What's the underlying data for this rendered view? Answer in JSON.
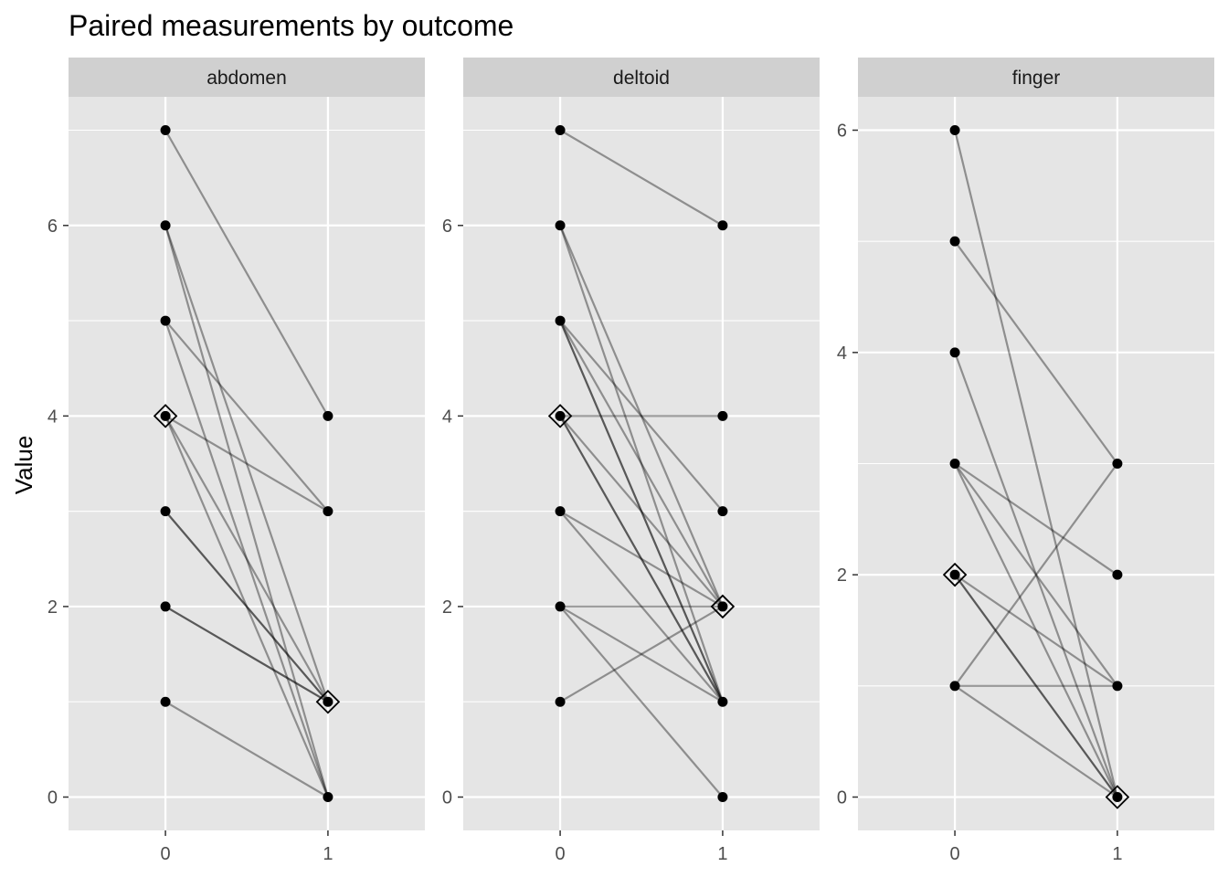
{
  "chart_data": {
    "type": "line",
    "title": "Paired measurements by outcome",
    "xlabel": "",
    "ylabel": "Value",
    "x_categories": [
      "0",
      "1"
    ],
    "grid": true,
    "legend": "none",
    "colors": {
      "panel_bg": "#e5e5e5",
      "strip_bg": "#d0d0d0",
      "grid": "#ffffff",
      "point": "#000000",
      "line": "#000000"
    },
    "facets": [
      {
        "name": "abdomen",
        "ylim": [
          -0.35,
          7.35
        ],
        "y_ticks": [
          0,
          2,
          4,
          6
        ],
        "pairs": [
          [
            7,
            4
          ],
          [
            6,
            1
          ],
          [
            6,
            0
          ],
          [
            5,
            3
          ],
          [
            5,
            0
          ],
          [
            4,
            3
          ],
          [
            4,
            1
          ],
          [
            4,
            0
          ],
          [
            3,
            1
          ],
          [
            3,
            1
          ],
          [
            2,
            1
          ],
          [
            2,
            1
          ],
          [
            1,
            0
          ]
        ],
        "median": [
          4,
          1
        ]
      },
      {
        "name": "deltoid",
        "ylim": [
          -0.35,
          7.35
        ],
        "y_ticks": [
          0,
          2,
          4,
          6
        ],
        "pairs": [
          [
            7,
            6
          ],
          [
            6,
            2
          ],
          [
            6,
            1
          ],
          [
            5,
            3
          ],
          [
            5,
            2
          ],
          [
            5,
            1
          ],
          [
            5,
            1
          ],
          [
            4,
            4
          ],
          [
            4,
            2
          ],
          [
            4,
            1
          ],
          [
            4,
            1
          ],
          [
            3,
            2
          ],
          [
            3,
            1
          ],
          [
            2,
            2
          ],
          [
            2,
            1
          ],
          [
            2,
            0
          ],
          [
            1,
            2
          ]
        ],
        "median": [
          4,
          2
        ]
      },
      {
        "name": "finger",
        "ylim": [
          -0.3,
          6.3
        ],
        "y_ticks": [
          0,
          2,
          4,
          6
        ],
        "pairs": [
          [
            6,
            0
          ],
          [
            5,
            3
          ],
          [
            4,
            0
          ],
          [
            3,
            2
          ],
          [
            3,
            1
          ],
          [
            3,
            0
          ],
          [
            2,
            1
          ],
          [
            2,
            0
          ],
          [
            2,
            0
          ],
          [
            1,
            3
          ],
          [
            1,
            1
          ],
          [
            1,
            0
          ]
        ],
        "median": [
          2,
          0
        ]
      }
    ]
  }
}
